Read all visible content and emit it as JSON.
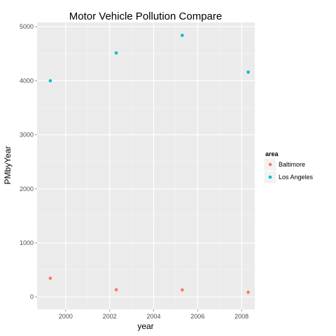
{
  "chart_data": {
    "type": "scatter",
    "title": "Motor Vehicle Pollution Compare",
    "xlabel": "year",
    "ylabel": "PMbyYear",
    "xlim": [
      1998.7,
      2008.6
    ],
    "ylim": [
      -230,
      5080
    ],
    "x_ticks": [
      2000,
      2002,
      2004,
      2006,
      2008
    ],
    "y_ticks": [
      0,
      1000,
      2000,
      3000,
      4000,
      5000
    ],
    "grid": true,
    "legend": {
      "title": "area",
      "placement": "right",
      "entries": [
        "Baltimore",
        "Los Angeles"
      ]
    },
    "series": [
      {
        "name": "Baltimore",
        "color": "#F8766D",
        "x": [
          1999.3,
          2002.3,
          2005.3,
          2008.3
        ],
        "y": [
          347,
          134,
          130,
          88
        ]
      },
      {
        "name": "Los Angeles",
        "color": "#00BFC4",
        "x": [
          1999.3,
          2002.3,
          2005.3,
          2008.3
        ],
        "y": [
          4000,
          4515,
          4840,
          4160
        ]
      }
    ]
  }
}
